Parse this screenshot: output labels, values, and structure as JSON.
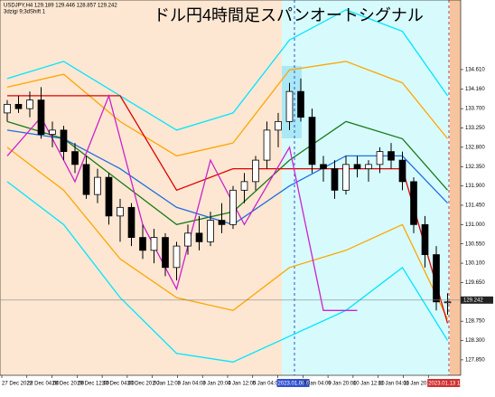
{
  "chart_data": {
    "type": "candlestick",
    "title": "ドル円4時間足スパンオートシグナル",
    "header": "USDJPY,H4 129.189 129.446 128.857 129.242",
    "indicator_label": "3dzigi 9;3dShift 1",
    "ylim": [
      127.49,
      136.23
    ],
    "yticks": [
      {
        "value": 134.61,
        "label": "134.610"
      },
      {
        "value": 134.16,
        "label": "134.160"
      },
      {
        "value": 133.7,
        "label": "133.700"
      },
      {
        "value": 133.25,
        "label": "133.250"
      },
      {
        "value": 132.8,
        "label": "132.800"
      },
      {
        "value": 132.35,
        "label": "132.350"
      },
      {
        "value": 131.9,
        "label": "131.900"
      },
      {
        "value": 131.45,
        "label": "131.450"
      },
      {
        "value": 131,
        "label": "131.000"
      },
      {
        "value": 130.55,
        "label": "130.550"
      },
      {
        "value": 130.1,
        "label": "130.100"
      },
      {
        "value": 129.65,
        "label": "129.650"
      },
      {
        "value": 128.75,
        "label": "128.750"
      },
      {
        "value": 128.3,
        "label": "128.300"
      },
      {
        "value": 127.85,
        "label": "127.850"
      }
    ],
    "last_price": 129.242,
    "x_labels": [
      "27 Dec 2022",
      "28 Dec 04:00",
      "28 Dec 20:00",
      "29 Dec 12:00",
      "30 Dec 04:00",
      "30 Dec 20:00",
      "2 Jan 12:00",
      "3 Jan 04:00",
      "3 Jan 20:00",
      "4 Jan 12:00",
      "5 Jan 04:00",
      "2023.01.06 08:00",
      "9 Jan 04:00",
      "9 Jan 20:00",
      "10 Jan 12:00",
      "11 Jan 04:00",
      "11 Jan 20:00",
      "2023.01.13 12:00"
    ],
    "x_label_highlights": [
      {
        "index": 11,
        "color": "#3050d0"
      },
      {
        "index": 17,
        "color": "#d03030"
      }
    ],
    "candles": {
      "up_color": "#ffffff",
      "down_color": "#000000",
      "open": [
        133.6,
        133.8,
        133.7,
        133.9,
        133.1,
        133.2,
        132.7,
        132.4,
        131.7,
        132.1,
        131.2,
        131.4,
        130.7,
        130.4,
        130.7,
        130.0,
        130.5,
        130.8,
        130.6,
        131.1,
        131.0,
        131.8,
        132.0,
        132.5,
        133.2,
        133.4,
        134.1,
        133.5,
        132.4,
        132.3,
        131.8,
        132.4,
        132.3,
        132.4,
        132.7,
        132.5,
        132.0,
        131.0,
        130.3,
        129.2
      ],
      "high": [
        133.9,
        134.0,
        134.1,
        134.2,
        133.4,
        133.3,
        132.9,
        132.6,
        132.3,
        132.2,
        131.6,
        131.5,
        131.0,
        130.9,
        130.8,
        130.6,
        131.0,
        131.2,
        131.3,
        131.5,
        131.9,
        132.2,
        132.6,
        133.4,
        133.6,
        134.3,
        134.4,
        133.7,
        132.6,
        132.5,
        132.6,
        132.6,
        132.5,
        132.8,
        132.9,
        132.7,
        132.1,
        131.2,
        130.5,
        129.4
      ],
      "low": [
        133.4,
        133.6,
        133.5,
        133.0,
        132.8,
        132.5,
        132.2,
        131.6,
        131.5,
        131.0,
        130.6,
        130.5,
        130.2,
        130.1,
        129.8,
        129.7,
        130.3,
        130.4,
        130.5,
        130.8,
        130.9,
        131.5,
        131.8,
        132.3,
        132.8,
        133.2,
        133.4,
        132.2,
        132.0,
        131.6,
        131.7,
        132.1,
        132.0,
        132.2,
        132.3,
        131.8,
        130.8,
        130.0,
        129.0,
        128.9
      ],
      "close": [
        133.8,
        133.7,
        133.9,
        133.1,
        133.2,
        132.7,
        132.4,
        131.7,
        132.1,
        131.2,
        131.4,
        130.7,
        130.4,
        130.7,
        130.0,
        130.5,
        130.8,
        130.6,
        131.1,
        131.0,
        131.8,
        132.0,
        132.5,
        133.2,
        133.4,
        134.1,
        133.5,
        132.4,
        132.3,
        131.8,
        132.4,
        132.3,
        132.4,
        132.7,
        132.5,
        132.0,
        131.0,
        130.3,
        129.2,
        129.2
      ]
    },
    "series": [
      {
        "color": "#00e5ff",
        "x": [
          0,
          5,
          10,
          15,
          20,
          25,
          30,
          35,
          39
        ],
        "values": [
          134.4,
          134.8,
          134.0,
          133.2,
          133.6,
          135.3,
          136.0,
          135.5,
          134.0
        ]
      },
      {
        "color": "#00e5ff",
        "x": [
          0,
          5,
          10,
          15,
          20,
          25,
          30,
          35,
          39
        ],
        "values": [
          132.0,
          131.0,
          129.3,
          128.0,
          127.8,
          128.4,
          129.0,
          130.0,
          128.3
        ]
      },
      {
        "color": "#ffa500",
        "x": [
          0,
          5,
          10,
          15,
          20,
          25,
          30,
          35,
          39
        ],
        "values": [
          134.2,
          134.5,
          133.4,
          132.6,
          132.9,
          134.6,
          134.8,
          134.3,
          133.0
        ]
      },
      {
        "color": "#ffa500",
        "x": [
          0,
          5,
          10,
          15,
          20,
          25,
          30,
          35,
          39
        ],
        "values": [
          132.8,
          131.8,
          130.2,
          129.3,
          129.0,
          130.0,
          130.4,
          131.0,
          128.8
        ]
      },
      {
        "color": "#1a7a1a",
        "x": [
          0,
          5,
          10,
          15,
          20,
          25,
          30,
          35,
          39
        ],
        "values": [
          133.4,
          133.0,
          132.0,
          131.0,
          131.3,
          132.5,
          133.4,
          133.0,
          131.8
        ]
      },
      {
        "color": "#1f6fe0",
        "x": [
          0,
          5,
          10,
          15,
          20,
          25,
          30,
          35,
          39
        ],
        "values": [
          133.2,
          133.0,
          132.3,
          131.4,
          131.0,
          131.9,
          132.6,
          132.6,
          131.5
        ]
      },
      {
        "color": "#e00000",
        "x": [
          0,
          5,
          10,
          15,
          20,
          25,
          30,
          35,
          39
        ],
        "values": [
          134.0,
          134.0,
          134.0,
          131.8,
          132.3,
          132.3,
          132.3,
          132.3,
          128.7
        ]
      },
      {
        "color": "#cc22cc",
        "x": [
          0,
          3,
          6,
          9,
          12,
          15,
          18,
          21,
          25,
          28,
          31
        ],
        "values": [
          132.6,
          133.5,
          132.0,
          134.0,
          131.0,
          129.5,
          132.5,
          131.0,
          132.8,
          129.0,
          129.0
        ]
      }
    ]
  }
}
